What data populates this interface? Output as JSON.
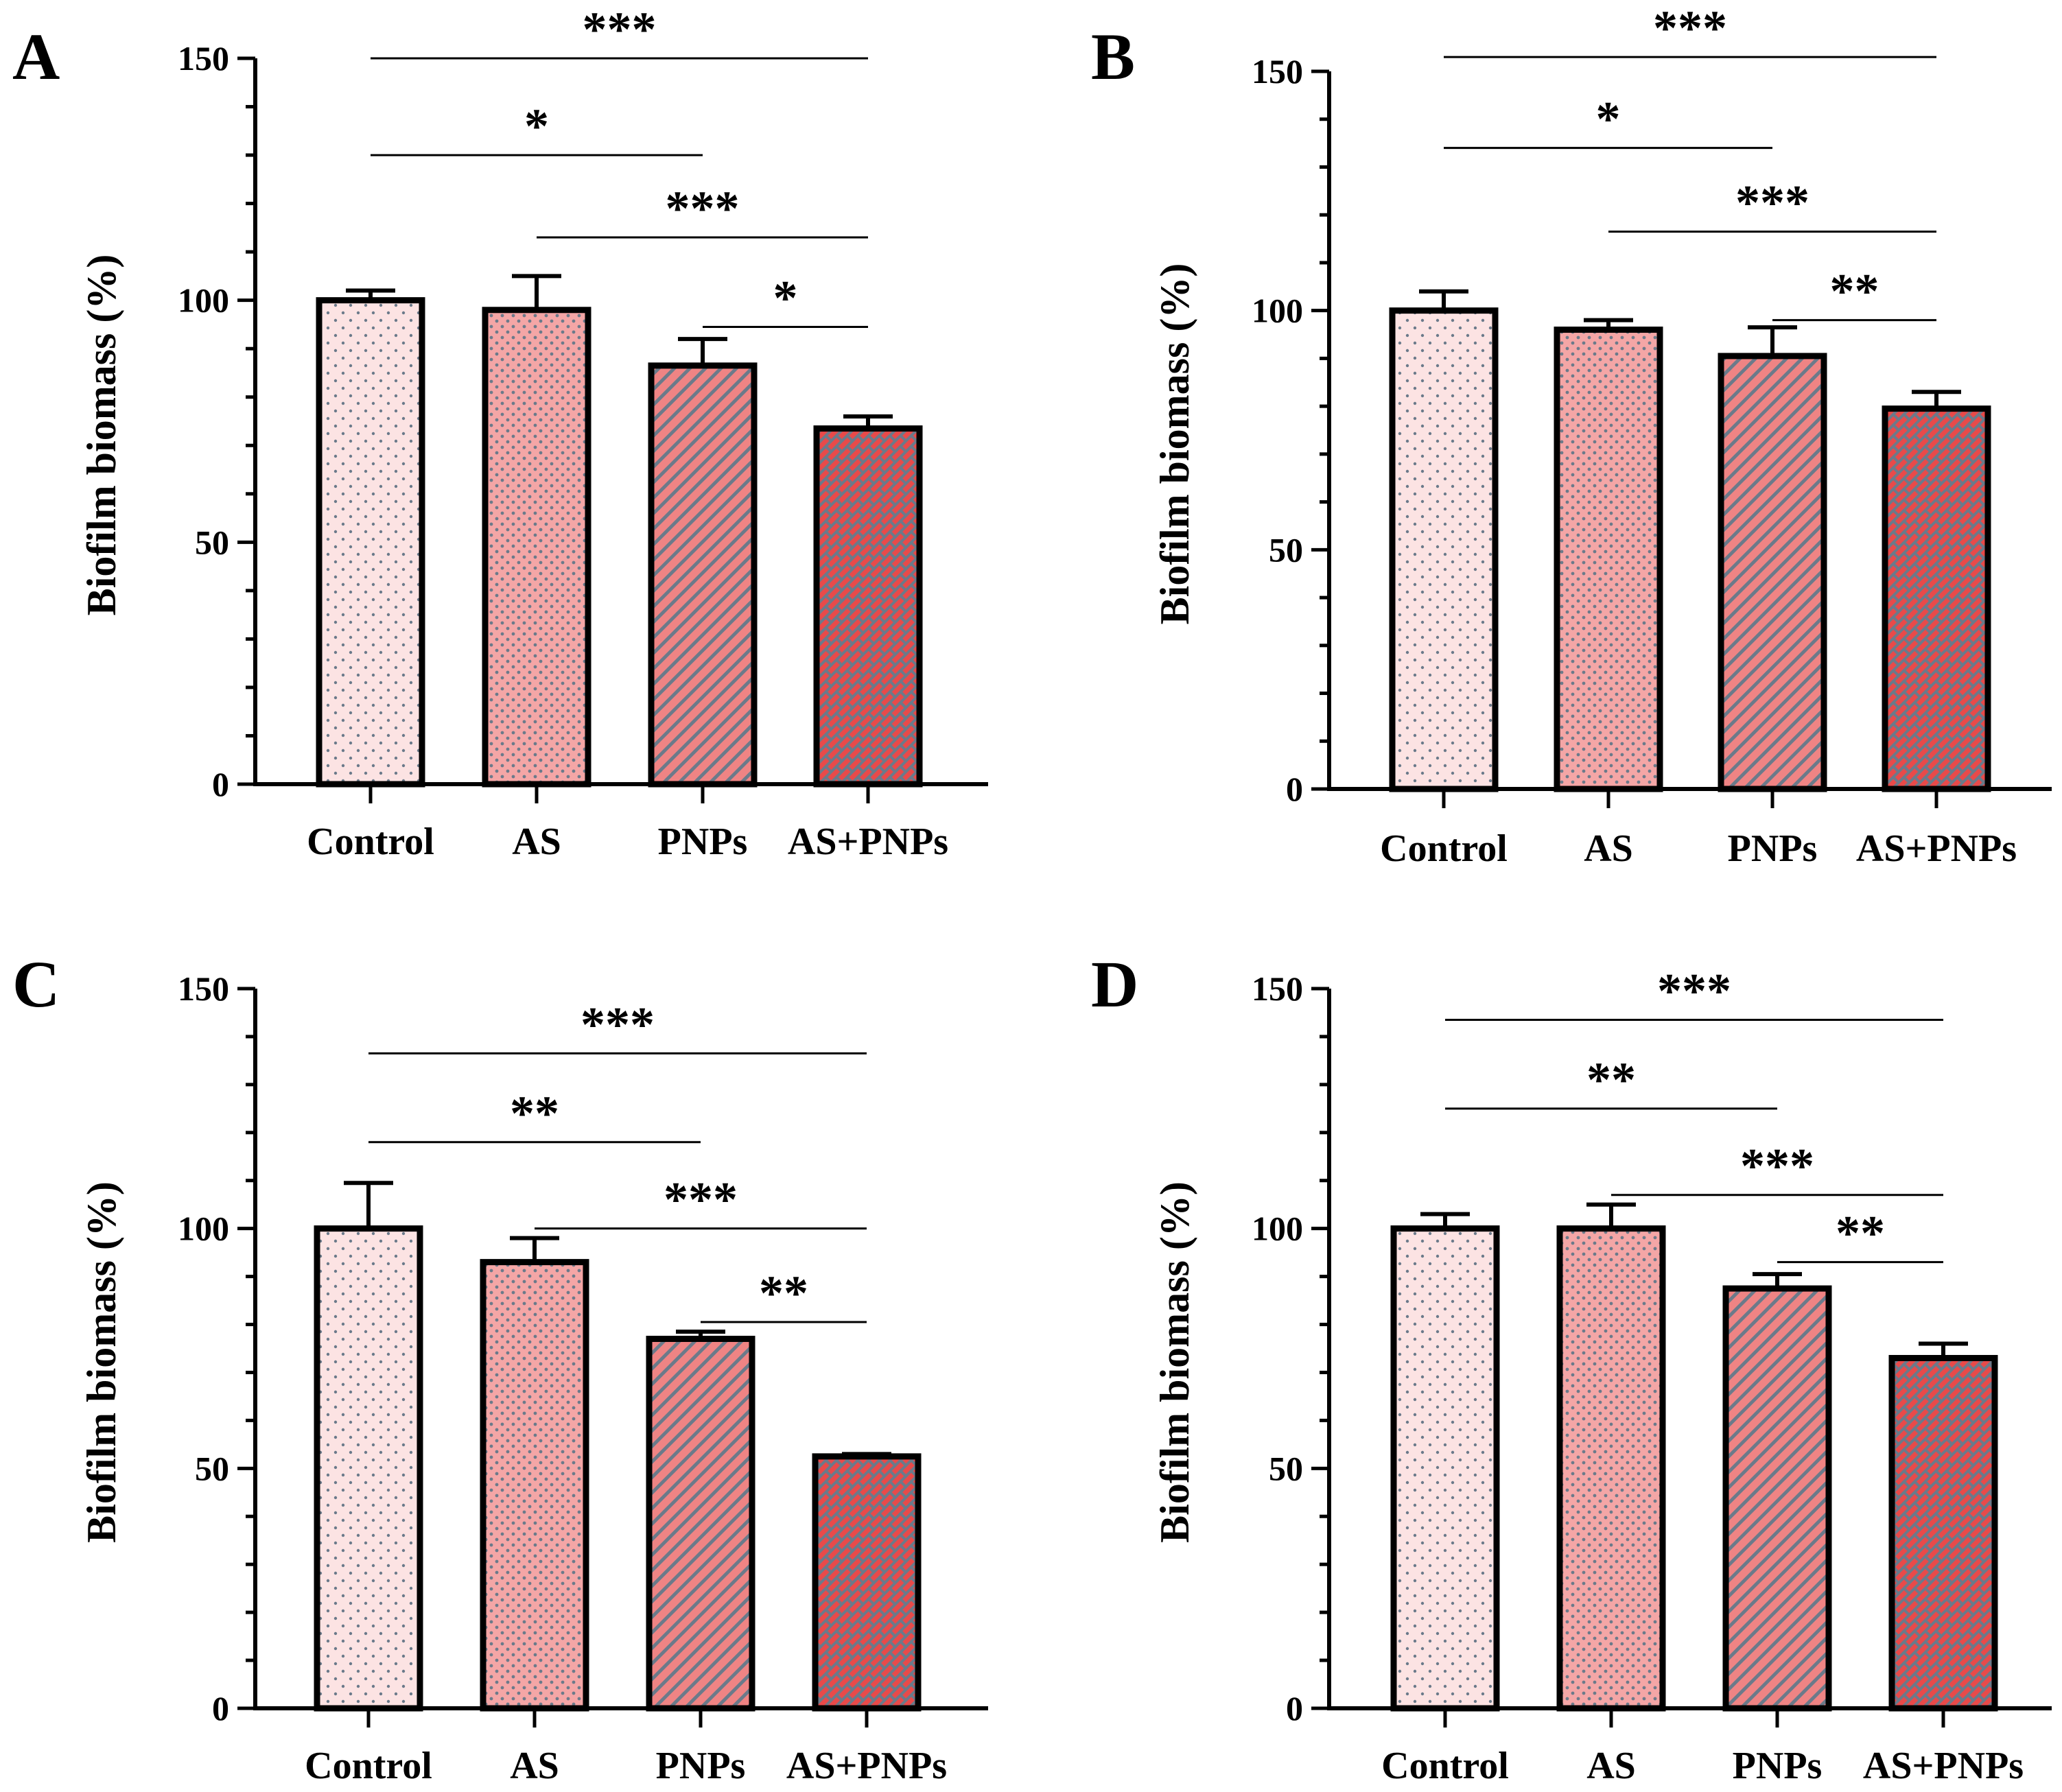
{
  "chart_data": [
    {
      "type": "bar",
      "panel": "A",
      "categories": [
        "Control",
        "AS",
        "PNPs",
        "AS+PNPs"
      ],
      "values": [
        100,
        98,
        86.5,
        73.5
      ],
      "errors": [
        2,
        7,
        5.5,
        2.5
      ],
      "ylabel": "Biofilm biomass (%)",
      "ylim": [
        0,
        150
      ],
      "yticks": [
        "0",
        "50",
        "100",
        "150"
      ],
      "significance": [
        {
          "from": 0,
          "to": 3,
          "level": 150,
          "label": "***"
        },
        {
          "from": 0,
          "to": 2,
          "level": 130,
          "label": "*"
        },
        {
          "from": 1,
          "to": 3,
          "level": 113,
          "label": "***"
        },
        {
          "from": 2,
          "to": 3,
          "level": 94.5,
          "label": "*"
        }
      ]
    },
    {
      "type": "bar",
      "panel": "B",
      "categories": [
        "Control",
        "AS",
        "PNPs",
        "AS+PNPs"
      ],
      "values": [
        100,
        96,
        90.5,
        79.5
      ],
      "errors": [
        4,
        2,
        6,
        3.5
      ],
      "ylabel": "Biofilm biomass (%)",
      "ylim": [
        0,
        150
      ],
      "yticks": [
        "0",
        "50",
        "100",
        "150"
      ],
      "significance": [
        {
          "from": 0,
          "to": 3,
          "level": 153,
          "label": "***"
        },
        {
          "from": 0,
          "to": 2,
          "level": 134,
          "label": "*"
        },
        {
          "from": 1,
          "to": 3,
          "level": 116.5,
          "label": "***"
        },
        {
          "from": 2,
          "to": 3,
          "level": 98,
          "label": "**"
        }
      ]
    },
    {
      "type": "bar",
      "panel": "C",
      "categories": [
        "Control",
        "AS",
        "PNPs",
        "AS+PNPs"
      ],
      "values": [
        100,
        93,
        77,
        52.5
      ],
      "errors": [
        9.5,
        5,
        1.5,
        0.5
      ],
      "ylabel": "Biofilm biomass (%)",
      "ylim": [
        0,
        150
      ],
      "yticks": [
        "0",
        "50",
        "100",
        "150"
      ],
      "significance": [
        {
          "from": 0,
          "to": 3,
          "level": 136.5,
          "label": "***"
        },
        {
          "from": 0,
          "to": 2,
          "level": 118,
          "label": "**"
        },
        {
          "from": 1,
          "to": 3,
          "level": 100,
          "label": "***"
        },
        {
          "from": 2,
          "to": 3,
          "level": 80.5,
          "label": "**"
        }
      ]
    },
    {
      "type": "bar",
      "panel": "D",
      "categories": [
        "Control",
        "AS",
        "PNPs",
        "AS+PNPs"
      ],
      "values": [
        100,
        100,
        87.5,
        73
      ],
      "errors": [
        3,
        5,
        3,
        3
      ],
      "ylabel": "Biofilm biomass (%)",
      "ylim": [
        0,
        150
      ],
      "yticks": [
        "0",
        "50",
        "100",
        "150"
      ],
      "significance": [
        {
          "from": 0,
          "to": 3,
          "level": 143.5,
          "label": "***"
        },
        {
          "from": 0,
          "to": 2,
          "level": 125,
          "label": "**"
        },
        {
          "from": 1,
          "to": 3,
          "level": 107,
          "label": "***"
        },
        {
          "from": 2,
          "to": 3,
          "level": 93,
          "label": "**"
        }
      ]
    }
  ],
  "colors": {
    "control_fill": "#fce3e3",
    "as_fill": "#f4a6a6",
    "pnps_fill": "#ef8484",
    "combo_fill": "#e84a4a",
    "pattern_ink": "#6b7a8a",
    "axis": "#000000"
  }
}
